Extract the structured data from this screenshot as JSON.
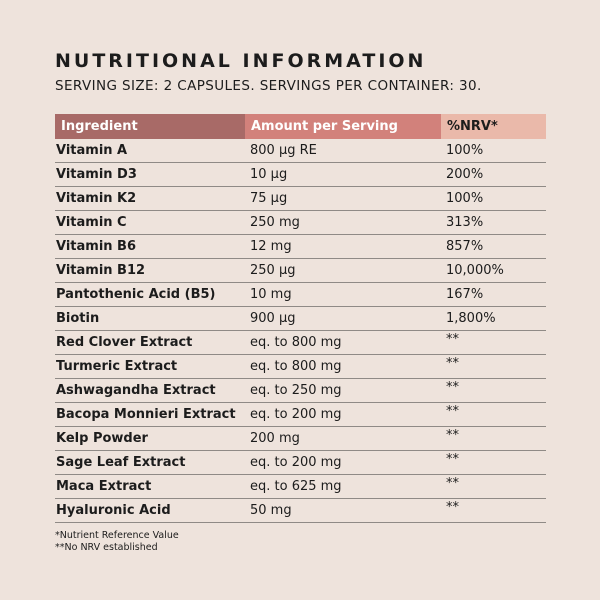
{
  "title": "NUTRITIONAL INFORMATION",
  "subtitle": "SERVING SIZE: 2 CAPSULES. SERVINGS PER CONTAINER: 30.",
  "table": {
    "headers": [
      "Ingredient",
      "Amount per Serving",
      "%NRV*"
    ],
    "rows": [
      {
        "ingredient": "Vitamin A",
        "amount": "800 µg RE",
        "nrv": "100%"
      },
      {
        "ingredient": "Vitamin D3",
        "amount": "10 µg",
        "nrv": "200%"
      },
      {
        "ingredient": "Vitamin K2",
        "amount": "75 µg",
        "nrv": "100%"
      },
      {
        "ingredient": "Vitamin C",
        "amount": "250 mg",
        "nrv": "313%"
      },
      {
        "ingredient": "Vitamin B6",
        "amount": "12 mg",
        "nrv": "857%"
      },
      {
        "ingredient": "Vitamin B12",
        "amount": "250 µg",
        "nrv": "10,000%"
      },
      {
        "ingredient": "Pantothenic Acid (B5)",
        "amount": "10 mg",
        "nrv": "167%"
      },
      {
        "ingredient": "Biotin",
        "amount": "900 µg",
        "nrv": "1,800%"
      },
      {
        "ingredient": "Red Clover Extract",
        "amount": "eq. to 800 mg",
        "nrv": "**"
      },
      {
        "ingredient": "Turmeric Extract",
        "amount": "eq. to 800 mg",
        "nrv": "**"
      },
      {
        "ingredient": "Ashwagandha Extract",
        "amount": "eq. to 250 mg",
        "nrv": "**"
      },
      {
        "ingredient": "Bacopa Monnieri Extract",
        "amount": "eq. to 200 mg",
        "nrv": "**"
      },
      {
        "ingredient": "Kelp Powder",
        "amount": "200 mg",
        "nrv": "**"
      },
      {
        "ingredient": "Sage Leaf Extract",
        "amount": "eq. to 200 mg",
        "nrv": "**"
      },
      {
        "ingredient": "Maca Extract",
        "amount": "eq. to 625 mg",
        "nrv": "**"
      },
      {
        "ingredient": "Hyaluronic Acid",
        "amount": "50 mg",
        "nrv": "**"
      }
    ]
  },
  "notes": {
    "nrv": "*Nutrient Reference Value",
    "no_nrv": "**No NRV established"
  },
  "colors": {
    "background": "#eee3dc",
    "header_ingredient": "#a86a67",
    "header_amount": "#d2817b",
    "header_nrv": "#eab9aa"
  }
}
